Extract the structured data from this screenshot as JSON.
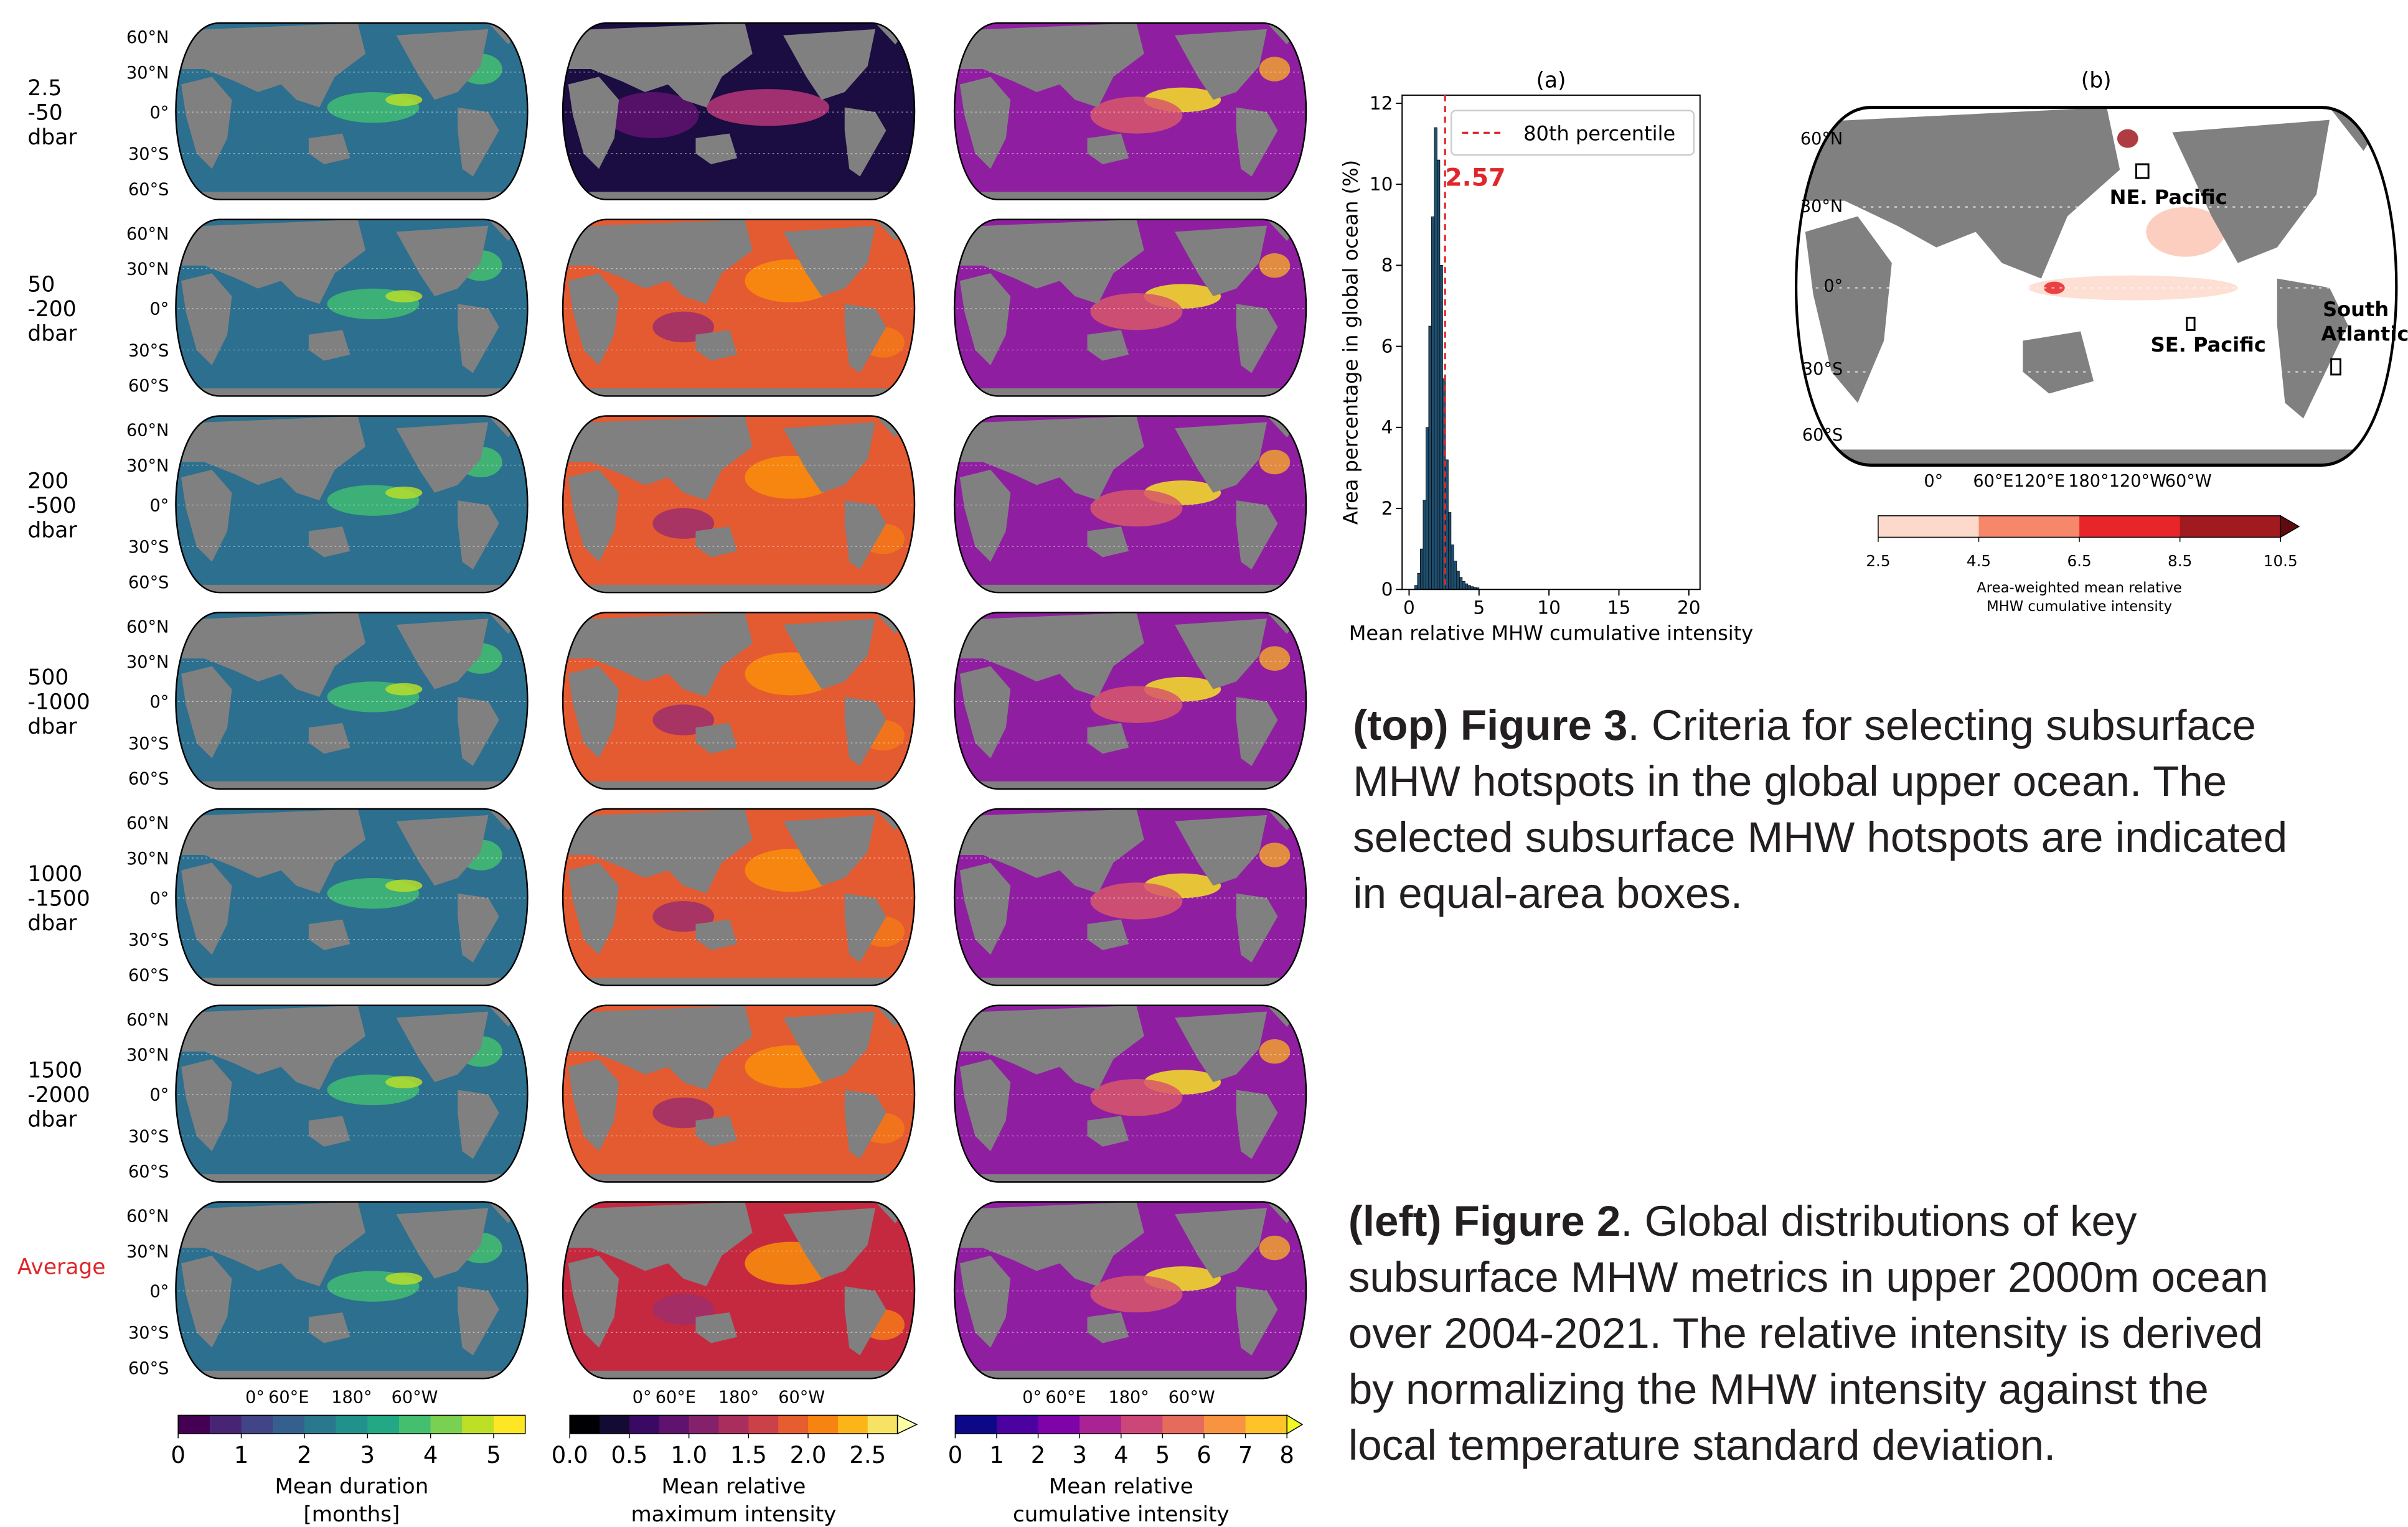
{
  "chart_data": {
    "type": "histogram",
    "title": "(a)",
    "x_label": "Mean relative MHW cumulative intensity",
    "y_label": "Area percentage in global ocean (%)",
    "bins": [
      0.4,
      0.6,
      0.8,
      1.0,
      1.2,
      1.4,
      1.6,
      1.8,
      2.0,
      2.2,
      2.4,
      2.6,
      2.8,
      3.0,
      3.2,
      3.4,
      3.6,
      3.8,
      4.0,
      4.2,
      4.4,
      4.6,
      4.8,
      5.0
    ],
    "values": [
      0.1,
      0.4,
      1.0,
      2.2,
      4.0,
      6.5,
      9.2,
      11.4,
      10.6,
      8.0,
      5.2,
      3.2,
      1.9,
      1.1,
      0.7,
      0.45,
      0.3,
      0.2,
      0.14,
      0.1,
      0.07,
      0.05,
      0.04
    ],
    "color": "#1f4e6e",
    "xlim": [
      -0.5,
      20.8
    ],
    "xticks": [
      0,
      5,
      10,
      15,
      20
    ],
    "ylim": [
      0,
      12.2
    ],
    "yticks": [
      0,
      2,
      4,
      6,
      8,
      10,
      12
    ],
    "percentile": {
      "name": "80th percentile",
      "value": 2.57,
      "color": "#e0262a"
    },
    "legend": "upper right"
  },
  "figure2": {
    "row_labels": [
      [
        "2.5",
        "-50",
        "dbar"
      ],
      [
        "50",
        "-200",
        "dbar"
      ],
      [
        "200",
        "-500",
        "dbar"
      ],
      [
        "500",
        "-1000",
        "dbar"
      ],
      [
        "1000",
        "-1500",
        "dbar"
      ],
      [
        "1500",
        "-2000",
        "dbar"
      ]
    ],
    "average_label": "Average",
    "lat_labels": [
      "60°N",
      "30°N",
      "0°",
      "30°S",
      "60°S"
    ],
    "lon_labels": [
      "0°",
      "60°E",
      "180°",
      "60°W"
    ],
    "colorbars": [
      {
        "label": [
          "Mean duration",
          "[months]"
        ],
        "lim": [
          0,
          5.5
        ],
        "ticks": [
          0,
          1,
          2,
          3,
          4,
          5
        ],
        "colors": [
          "#440154",
          "#482475",
          "#414487",
          "#355f8d",
          "#2a788e",
          "#21918c",
          "#22a884",
          "#44bf70",
          "#7ad151",
          "#bddf26",
          "#fde725"
        ]
      },
      {
        "label": [
          "Mean relative",
          "maximum intensity"
        ],
        "lim": [
          0,
          2.75
        ],
        "ticks": [
          {
            "value": 0,
            "label": "0.0"
          },
          0.5,
          {
            "value": 1,
            "label": "1.0"
          },
          1.5,
          {
            "value": 2,
            "label": "2.0"
          },
          2.5
        ],
        "colors": [
          "#000004",
          "#140b34",
          "#390963",
          "#5f136e",
          "#85216b",
          "#a92e5e",
          "#cb4149",
          "#e65d2f",
          "#f78410",
          "#fcb519",
          "#f6e263"
        ],
        "extend_color": "#fcffa4"
      },
      {
        "label": [
          "Mean relative",
          "cumulative intensity"
        ],
        "lim": [
          0,
          8
        ],
        "ticks": [
          0,
          1,
          2,
          3,
          4,
          5,
          6,
          7,
          8
        ],
        "colors": [
          "#0d0887",
          "#4c02a1",
          "#7e03a8",
          "#a92395",
          "#cc4778",
          "#e56b5d",
          "#f89441",
          "#fdc328"
        ],
        "extend_color": "#f0f921"
      }
    ]
  },
  "map_b": {
    "title": "(b)",
    "lat_labels": [
      "60°N",
      "30°N",
      "0°",
      "30°S",
      "60°S"
    ],
    "lon_labels": [
      "0°",
      "60°E",
      "120°E",
      "180°",
      "120°W",
      "60°W"
    ],
    "regions": [
      [
        "NE. Pacific"
      ],
      [
        "SE. Pacific"
      ],
      [
        "South",
        "Atlantic"
      ]
    ],
    "colorbar": {
      "label": [
        "Area-weighted mean relative",
        "MHW cumulative intensity"
      ],
      "lim": [
        2.5,
        10.5
      ],
      "ticks": [
        2.5,
        4.5,
        6.5,
        8.5,
        10.5
      ],
      "colors": [
        "#fdd9cc",
        "#f7876a",
        "#e8262a",
        "#a11a1f"
      ],
      "extend_color": "#5e0a0f"
    }
  },
  "captions": {
    "fig3": {
      "lead": "(top) Figure 3",
      "lines": [
        ". Criteria for selecting subsurface",
        "MHW hotspots in the global upper ocean. The",
        "selected subsurface MHW hotspots are indicated",
        "in equal-area boxes."
      ]
    },
    "fig2": {
      "lead": "(left) Figure 2",
      "lines": [
        ". Global distributions of key",
        "subsurface MHW metrics in upper 2000m ocean",
        "over 2004-2021. The relative intensity is derived",
        "by normalizing the MHW intensity against the",
        "local temperature standard deviation."
      ]
    }
  }
}
